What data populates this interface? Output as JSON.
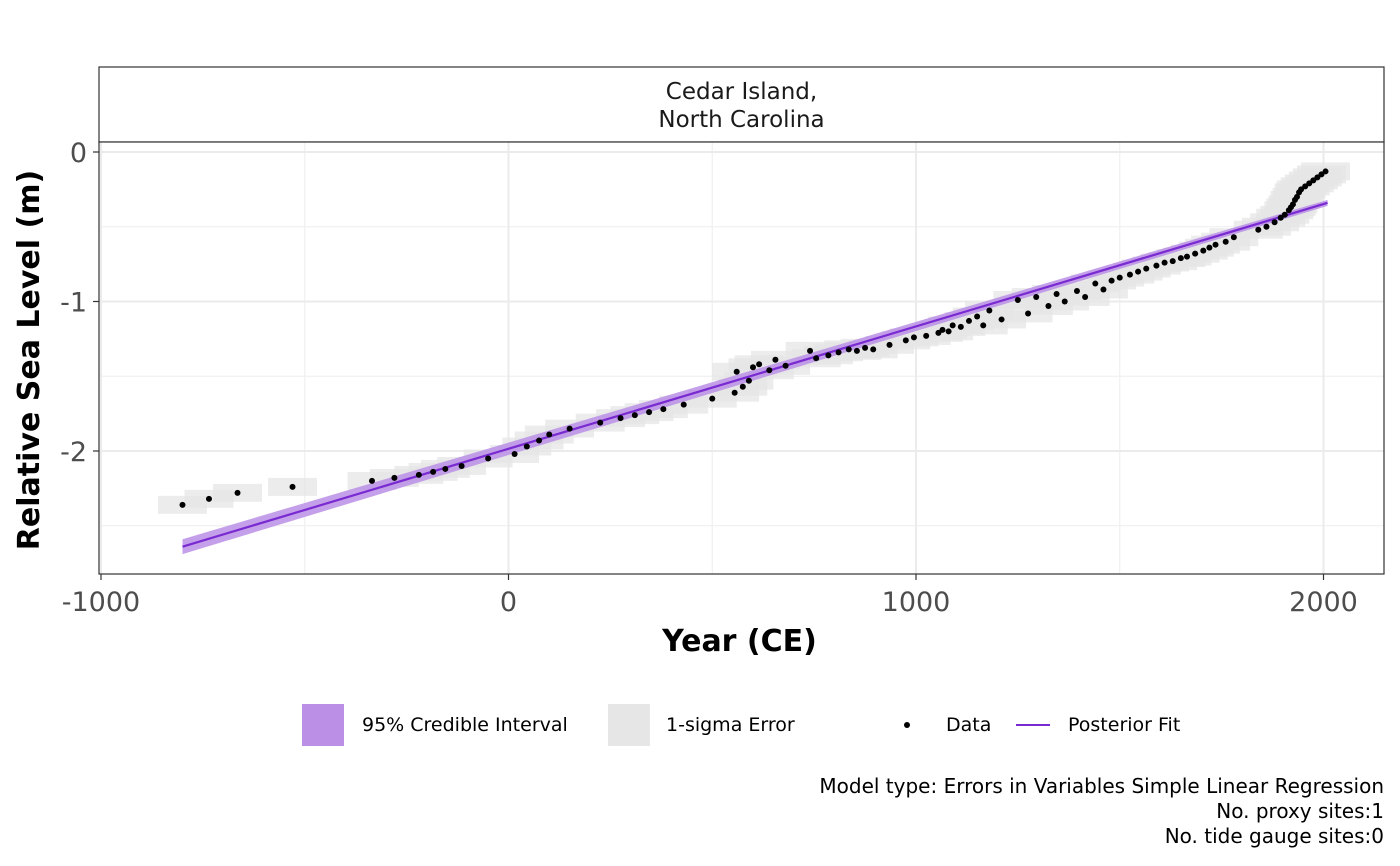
{
  "chart_data": {
    "type": "scatter",
    "strip_title_line1": "Cedar Island,",
    "strip_title_line2": "North Carolina",
    "xlabel": "Year (CE)",
    "ylabel": "Relative Sea Level (m)",
    "xlim": [
      -1000,
      2150
    ],
    "ylim": [
      -2.8,
      0
    ],
    "x_ticks": [
      -1000,
      0,
      1000,
      2000
    ],
    "x_tick_labels": [
      "-1000",
      "0",
      "1000",
      "2000"
    ],
    "y_ticks": [
      0,
      -1,
      -2
    ],
    "y_tick_labels": [
      "0",
      "-1",
      "-2"
    ],
    "grid": true,
    "legend_position": "bottom",
    "colors": {
      "credible_interval": "#bb8fe6",
      "error_box": "#e6e6e6",
      "data": "#000000",
      "fit": "#7a2ad1"
    },
    "series": [
      {
        "name": "Data",
        "x": [
          -800,
          -735,
          -665,
          -530,
          -335,
          -280,
          -220,
          -185,
          -155,
          -115,
          -50,
          15,
          45,
          75,
          100,
          150,
          225,
          275,
          310,
          345,
          380,
          430,
          500,
          555,
          560,
          575,
          590,
          600,
          615,
          640,
          655,
          680,
          740,
          755,
          785,
          810,
          835,
          855,
          875,
          895,
          935,
          975,
          995,
          1025,
          1055,
          1065,
          1080,
          1090,
          1110,
          1130,
          1150,
          1165,
          1180,
          1210,
          1250,
          1275,
          1295,
          1325,
          1345,
          1365,
          1395,
          1415,
          1440,
          1460,
          1480,
          1500,
          1525,
          1545,
          1565,
          1590,
          1610,
          1630,
          1650,
          1665,
          1685,
          1705,
          1720,
          1735,
          1760,
          1780,
          1840,
          1860,
          1880,
          1895,
          1905,
          1915,
          1920,
          1925,
          1930,
          1935,
          1940,
          1945,
          1955,
          1965,
          1975,
          1985,
          1995,
          2005
        ],
        "y": [
          -2.36,
          -2.32,
          -2.28,
          -2.24,
          -2.2,
          -2.18,
          -2.16,
          -2.14,
          -2.12,
          -2.1,
          -2.05,
          -2.02,
          -1.97,
          -1.93,
          -1.89,
          -1.85,
          -1.81,
          -1.78,
          -1.76,
          -1.74,
          -1.72,
          -1.69,
          -1.65,
          -1.61,
          -1.47,
          -1.57,
          -1.53,
          -1.44,
          -1.42,
          -1.46,
          -1.39,
          -1.43,
          -1.33,
          -1.38,
          -1.36,
          -1.34,
          -1.32,
          -1.33,
          -1.31,
          -1.32,
          -1.29,
          -1.26,
          -1.24,
          -1.23,
          -1.21,
          -1.19,
          -1.2,
          -1.16,
          -1.17,
          -1.13,
          -1.1,
          -1.16,
          -1.06,
          -1.12,
          -0.99,
          -1.08,
          -0.97,
          -1.03,
          -0.95,
          -1.0,
          -0.93,
          -0.97,
          -0.88,
          -0.92,
          -0.86,
          -0.84,
          -0.82,
          -0.8,
          -0.78,
          -0.76,
          -0.74,
          -0.73,
          -0.71,
          -0.7,
          -0.68,
          -0.66,
          -0.64,
          -0.62,
          -0.6,
          -0.57,
          -0.52,
          -0.5,
          -0.47,
          -0.44,
          -0.42,
          -0.39,
          -0.37,
          -0.35,
          -0.32,
          -0.3,
          -0.27,
          -0.25,
          -0.23,
          -0.21,
          -0.19,
          -0.17,
          -0.15,
          -0.13
        ]
      },
      {
        "name": "Posterior Fit",
        "x": [
          -800,
          2010
        ],
        "y": [
          -2.64,
          -0.34
        ],
        "ci_half_width_start": 0.05,
        "ci_half_width_end": 0.02
      }
    ],
    "error_box_half_width": {
      "x": 60,
      "y": 0.06
    }
  },
  "legend": {
    "ci_label": "95% Credible Interval",
    "err_label": "1-sigma Error",
    "data_label": "Data",
    "fit_label": "Posterior Fit"
  },
  "caption": {
    "line1": "Model type: Errors in Variables Simple Linear Regression",
    "line2": "No. proxy sites:1",
    "line3": "No. tide gauge sites:0"
  }
}
